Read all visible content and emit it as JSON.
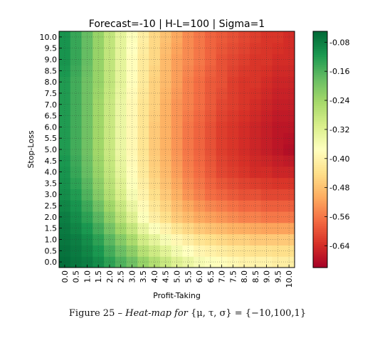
{
  "chart_data": {
    "type": "heatmap",
    "title": "Forecast=-10 | H-L=100 | Sigma=1",
    "xlabel": "Profit-Taking",
    "ylabel": "Stop-Loss",
    "x_ticks": [
      "0.0",
      "0.5",
      "1.0",
      "1.5",
      "2.0",
      "2.5",
      "3.0",
      "3.5",
      "4.0",
      "4.5",
      "5.0",
      "5.5",
      "6.0",
      "6.5",
      "7.0",
      "7.5",
      "8.0",
      "8.5",
      "9.0",
      "9.5",
      "10.0"
    ],
    "y_ticks": [
      "0.0",
      "0.5",
      "1.0",
      "1.5",
      "2.0",
      "2.5",
      "3.0",
      "3.5",
      "4.0",
      "4.5",
      "5.0",
      "5.5",
      "6.0",
      "6.5",
      "7.0",
      "7.5",
      "8.0",
      "8.5",
      "9.0",
      "9.5",
      "10.0"
    ],
    "x_range": [
      0,
      10
    ],
    "y_range": [
      0,
      10
    ],
    "colorbar": {
      "ticks": [
        "-0.08",
        "-0.16",
        "-0.24",
        "-0.32",
        "-0.40",
        "-0.48",
        "-0.56",
        "-0.64"
      ],
      "tick_values": [
        -0.08,
        -0.16,
        -0.24,
        -0.32,
        -0.4,
        -0.48,
        -0.56,
        -0.64
      ],
      "range": [
        -0.7,
        -0.05
      ],
      "colormap": "RdYlGn"
    },
    "grid": true,
    "values_by_stop_loss": [
      {
        "stop_loss": 0.0,
        "values": [
          -0.06,
          -0.07,
          -0.08,
          -0.1,
          -0.13,
          -0.16,
          -0.19,
          -0.23,
          -0.26,
          -0.29,
          -0.32,
          -0.34,
          -0.36,
          -0.37,
          -0.38,
          -0.39,
          -0.4,
          -0.4,
          -0.4,
          -0.41,
          -0.41
        ]
      },
      {
        "stop_loss": 1.0,
        "values": [
          -0.07,
          -0.08,
          -0.1,
          -0.13,
          -0.17,
          -0.21,
          -0.25,
          -0.3,
          -0.33,
          -0.36,
          -0.39,
          -0.41,
          -0.43,
          -0.44,
          -0.45,
          -0.46,
          -0.46,
          -0.47,
          -0.47,
          -0.47,
          -0.47
        ]
      },
      {
        "stop_loss": 2.0,
        "values": [
          -0.08,
          -0.1,
          -0.13,
          -0.17,
          -0.22,
          -0.27,
          -0.32,
          -0.37,
          -0.41,
          -0.44,
          -0.47,
          -0.49,
          -0.51,
          -0.52,
          -0.53,
          -0.54,
          -0.55,
          -0.55,
          -0.56,
          -0.56,
          -0.56
        ]
      },
      {
        "stop_loss": 3.0,
        "values": [
          -0.1,
          -0.12,
          -0.16,
          -0.21,
          -0.26,
          -0.31,
          -0.36,
          -0.4,
          -0.44,
          -0.47,
          -0.5,
          -0.53,
          -0.55,
          -0.57,
          -0.58,
          -0.59,
          -0.6,
          -0.6,
          -0.61,
          -0.61,
          -0.61
        ]
      },
      {
        "stop_loss": 4.0,
        "values": [
          -0.11,
          -0.14,
          -0.18,
          -0.23,
          -0.28,
          -0.33,
          -0.38,
          -0.42,
          -0.46,
          -0.49,
          -0.52,
          -0.55,
          -0.57,
          -0.59,
          -0.61,
          -0.62,
          -0.63,
          -0.64,
          -0.64,
          -0.65,
          -0.65
        ]
      },
      {
        "stop_loss": 5.0,
        "values": [
          -0.12,
          -0.15,
          -0.19,
          -0.24,
          -0.29,
          -0.34,
          -0.39,
          -0.43,
          -0.47,
          -0.5,
          -0.53,
          -0.56,
          -0.58,
          -0.6,
          -0.62,
          -0.63,
          -0.64,
          -0.65,
          -0.66,
          -0.67,
          -0.68
        ]
      },
      {
        "stop_loss": 6.0,
        "values": [
          -0.12,
          -0.15,
          -0.19,
          -0.24,
          -0.29,
          -0.34,
          -0.39,
          -0.43,
          -0.47,
          -0.5,
          -0.53,
          -0.56,
          -0.58,
          -0.6,
          -0.62,
          -0.63,
          -0.64,
          -0.65,
          -0.66,
          -0.67,
          -0.67
        ]
      },
      {
        "stop_loss": 7.0,
        "values": [
          -0.12,
          -0.15,
          -0.19,
          -0.24,
          -0.29,
          -0.34,
          -0.39,
          -0.43,
          -0.46,
          -0.5,
          -0.53,
          -0.55,
          -0.57,
          -0.59,
          -0.61,
          -0.62,
          -0.63,
          -0.64,
          -0.65,
          -0.66,
          -0.66
        ]
      },
      {
        "stop_loss": 8.0,
        "values": [
          -0.12,
          -0.15,
          -0.19,
          -0.23,
          -0.28,
          -0.33,
          -0.38,
          -0.42,
          -0.46,
          -0.49,
          -0.52,
          -0.55,
          -0.57,
          -0.59,
          -0.6,
          -0.62,
          -0.63,
          -0.63,
          -0.64,
          -0.65,
          -0.65
        ]
      },
      {
        "stop_loss": 9.0,
        "values": [
          -0.11,
          -0.14,
          -0.18,
          -0.23,
          -0.28,
          -0.33,
          -0.38,
          -0.42,
          -0.45,
          -0.49,
          -0.52,
          -0.54,
          -0.56,
          -0.58,
          -0.6,
          -0.61,
          -0.62,
          -0.63,
          -0.63,
          -0.64,
          -0.64
        ]
      },
      {
        "stop_loss": 10.0,
        "values": [
          -0.11,
          -0.14,
          -0.18,
          -0.23,
          -0.28,
          -0.33,
          -0.37,
          -0.41,
          -0.45,
          -0.48,
          -0.51,
          -0.54,
          -0.56,
          -0.58,
          -0.59,
          -0.6,
          -0.61,
          -0.62,
          -0.63,
          -0.63,
          -0.64
        ]
      }
    ]
  },
  "caption": {
    "lead": "Figure 25 – ",
    "italic": "Heat-map for ",
    "math": "{μ, τ, σ} = {−10,100,1}"
  }
}
